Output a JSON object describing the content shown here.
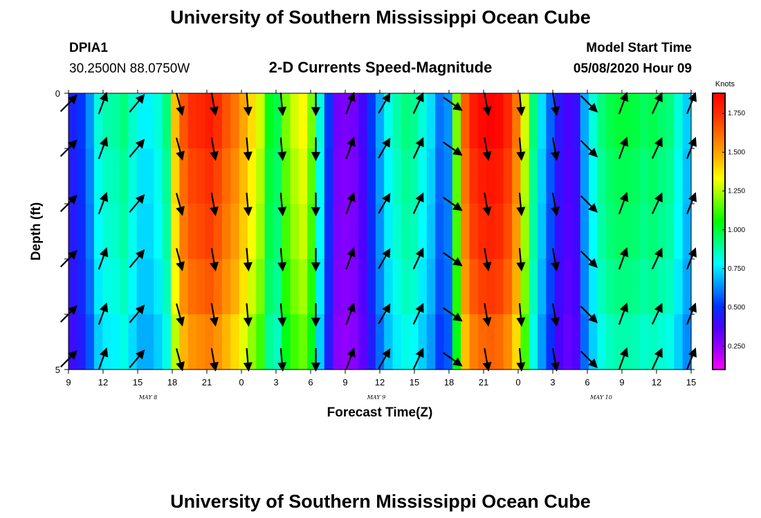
{
  "page": {
    "top_title": "University of Southern Mississippi Ocean Cube",
    "bottom_title": "University of Southern Mississippi Ocean Cube",
    "station_id": "DPIA1",
    "station_coords": "30.2500N 88.0750W",
    "plot_title": "2-D Currents Speed-Magnitude",
    "model_start_label": "Model Start Time",
    "model_start_value": "05/08/2020 Hour 09"
  },
  "chart_data": {
    "type": "heatmap",
    "title": "2-D Currents Speed-Magnitude",
    "xlabel": "Forecast Time(Z)",
    "ylabel": "Depth (ft)",
    "x_ticks": [
      "9",
      "12",
      "15",
      "18",
      "21",
      "0",
      "3",
      "6",
      "9",
      "12",
      "15",
      "18",
      "21",
      "0",
      "3",
      "6",
      "9",
      "12",
      "15"
    ],
    "date_labels": [
      {
        "text": "MAY 8",
        "tick_index": 2.3
      },
      {
        "text": "MAY 9",
        "tick_index": 8.9
      },
      {
        "text": "MAY 10",
        "tick_index": 15.4
      }
    ],
    "y_ticks": [
      "0",
      "5"
    ],
    "ylim": [
      0,
      5
    ],
    "depth_levels": 5,
    "colorbar": {
      "unit": "Knots",
      "min": 0.1,
      "max": 1.88,
      "tick_values": [
        1.75,
        1.5,
        1.25,
        1.0,
        0.75,
        0.5,
        0.25
      ],
      "tick_labels": [
        "1.750",
        "1.500",
        "1.250",
        "1.000",
        "0.750",
        "0.500",
        "0.250"
      ],
      "colors": [
        "#ff00ff",
        "#9b00ff",
        "#4c00ff",
        "#0033ff",
        "#0099ff",
        "#00ffff",
        "#00ff80",
        "#00ff00",
        "#7fff00",
        "#ffff00",
        "#ffb000",
        "#ff7000",
        "#ff3000",
        "#ff0000"
      ]
    },
    "speed_profile_by_hour": [
      0.45,
      0.5,
      0.62,
      0.8,
      0.85,
      0.86,
      0.9,
      0.82,
      0.75,
      0.75,
      0.8,
      0.9,
      1.4,
      1.62,
      1.7,
      1.72,
      1.75,
      1.7,
      1.62,
      1.55,
      1.45,
      1.35,
      1.25,
      1.0,
      0.95,
      1.15,
      1.25,
      1.3,
      1.15,
      0.8,
      0.5,
      0.3,
      0.28,
      0.3,
      0.38,
      0.5,
      0.65,
      0.78,
      0.85,
      0.9,
      0.88,
      0.8,
      0.72,
      0.58,
      0.62,
      1.15,
      1.6,
      1.75,
      1.8,
      1.82,
      1.8,
      1.72,
      1.55,
      1.25,
      0.9,
      0.72,
      0.56,
      0.42,
      0.37,
      0.4,
      0.65,
      0.8,
      0.9,
      0.95,
      0.97,
      0.97,
      0.96,
      0.93,
      0.95,
      0.92,
      0.9,
      0.8,
      0.7,
      0.5
    ],
    "depth_speed_factors": [
      1.03,
      1.0,
      0.98,
      0.95,
      0.9
    ],
    "arrow_hours": [
      0,
      4,
      8,
      13,
      17,
      21,
      25,
      29,
      33,
      37,
      41,
      45,
      49,
      53,
      57,
      61,
      65,
      69,
      73
    ],
    "arrow_directions_deg": [
      45,
      20,
      40,
      165,
      170,
      175,
      175,
      180,
      20,
      30,
      25,
      125,
      170,
      175,
      170,
      135,
      20,
      25,
      22
    ]
  }
}
